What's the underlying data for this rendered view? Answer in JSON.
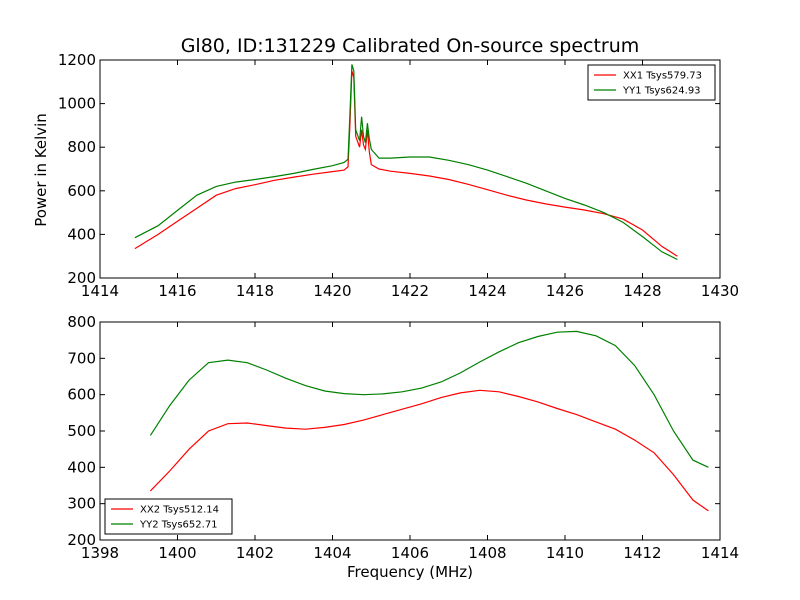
{
  "chart_data": [
    {
      "type": "line",
      "title": "Gl80, ID:131229 Calibrated On-source spectrum",
      "xlabel": "",
      "ylabel": "Power in Kelvin",
      "xlim": [
        1414,
        1430
      ],
      "ylim": [
        200,
        1200
      ],
      "xticks": [
        1414,
        1416,
        1418,
        1420,
        1422,
        1424,
        1426,
        1428,
        1430
      ],
      "yticks": [
        200,
        400,
        600,
        800,
        1000,
        1200
      ],
      "legend_position": "top-right",
      "series": [
        {
          "name": "XX1 Tsys579.73",
          "color": "#ff0000",
          "points": [
            [
              1414.9,
              335
            ],
            [
              1415.5,
              400
            ],
            [
              1416.0,
              460
            ],
            [
              1416.5,
              520
            ],
            [
              1417.0,
              580
            ],
            [
              1417.5,
              610
            ],
            [
              1418.0,
              628
            ],
            [
              1418.5,
              648
            ],
            [
              1419.0,
              663
            ],
            [
              1419.5,
              676
            ],
            [
              1420.0,
              688
            ],
            [
              1420.3,
              695
            ],
            [
              1420.4,
              710
            ],
            [
              1420.45,
              900
            ],
            [
              1420.5,
              1150
            ],
            [
              1420.55,
              1120
            ],
            [
              1420.6,
              850
            ],
            [
              1420.7,
              800
            ],
            [
              1420.75,
              880
            ],
            [
              1420.8,
              810
            ],
            [
              1420.85,
              790
            ],
            [
              1420.9,
              880
            ],
            [
              1420.95,
              780
            ],
            [
              1421.0,
              720
            ],
            [
              1421.2,
              700
            ],
            [
              1421.5,
              690
            ],
            [
              1422.0,
              680
            ],
            [
              1422.5,
              668
            ],
            [
              1423.0,
              652
            ],
            [
              1423.5,
              630
            ],
            [
              1424.0,
              605
            ],
            [
              1424.5,
              580
            ],
            [
              1425.0,
              558
            ],
            [
              1425.5,
              540
            ],
            [
              1426.0,
              525
            ],
            [
              1426.5,
              512
            ],
            [
              1427.0,
              495
            ],
            [
              1427.5,
              470
            ],
            [
              1428.0,
              420
            ],
            [
              1428.5,
              345
            ],
            [
              1428.9,
              300
            ]
          ]
        },
        {
          "name": "YY1 Tsys624.93",
          "color": "#008000",
          "points": [
            [
              1414.9,
              385
            ],
            [
              1415.5,
              440
            ],
            [
              1416.0,
              510
            ],
            [
              1416.5,
              580
            ],
            [
              1417.0,
              620
            ],
            [
              1417.5,
              640
            ],
            [
              1418.0,
              652
            ],
            [
              1418.5,
              665
            ],
            [
              1419.0,
              680
            ],
            [
              1419.5,
              698
            ],
            [
              1420.0,
              715
            ],
            [
              1420.3,
              730
            ],
            [
              1420.4,
              745
            ],
            [
              1420.45,
              950
            ],
            [
              1420.5,
              1180
            ],
            [
              1420.55,
              1150
            ],
            [
              1420.6,
              880
            ],
            [
              1420.7,
              830
            ],
            [
              1420.75,
              940
            ],
            [
              1420.8,
              850
            ],
            [
              1420.85,
              820
            ],
            [
              1420.9,
              910
            ],
            [
              1420.95,
              840
            ],
            [
              1421.0,
              790
            ],
            [
              1421.2,
              750
            ],
            [
              1421.5,
              750
            ],
            [
              1422.0,
              755
            ],
            [
              1422.5,
              755
            ],
            [
              1423.0,
              740
            ],
            [
              1423.5,
              720
            ],
            [
              1424.0,
              695
            ],
            [
              1424.5,
              665
            ],
            [
              1425.0,
              635
            ],
            [
              1425.5,
              600
            ],
            [
              1426.0,
              565
            ],
            [
              1426.5,
              535
            ],
            [
              1427.0,
              500
            ],
            [
              1427.5,
              455
            ],
            [
              1428.0,
              390
            ],
            [
              1428.5,
              320
            ],
            [
              1428.9,
              285
            ]
          ]
        }
      ]
    },
    {
      "type": "line",
      "title": "",
      "xlabel": "Frequency (MHz)",
      "ylabel": "",
      "xlim": [
        1398,
        1414
      ],
      "ylim": [
        200,
        800
      ],
      "xticks": [
        1398,
        1400,
        1402,
        1404,
        1406,
        1408,
        1410,
        1412,
        1414
      ],
      "yticks": [
        200,
        300,
        400,
        500,
        600,
        700,
        800
      ],
      "legend_position": "bottom-left",
      "series": [
        {
          "name": "XX2 Tsys512.14",
          "color": "#ff0000",
          "points": [
            [
              1399.3,
              335
            ],
            [
              1399.8,
              390
            ],
            [
              1400.3,
              450
            ],
            [
              1400.8,
              500
            ],
            [
              1401.3,
              520
            ],
            [
              1401.8,
              522
            ],
            [
              1402.3,
              515
            ],
            [
              1402.8,
              508
            ],
            [
              1403.3,
              505
            ],
            [
              1403.8,
              510
            ],
            [
              1404.3,
              518
            ],
            [
              1404.8,
              530
            ],
            [
              1405.3,
              545
            ],
            [
              1405.8,
              560
            ],
            [
              1406.3,
              575
            ],
            [
              1406.8,
              592
            ],
            [
              1407.3,
              605
            ],
            [
              1407.8,
              612
            ],
            [
              1408.3,
              608
            ],
            [
              1408.8,
              595
            ],
            [
              1409.3,
              580
            ],
            [
              1409.8,
              562
            ],
            [
              1410.3,
              545
            ],
            [
              1410.8,
              525
            ],
            [
              1411.3,
              505
            ],
            [
              1411.8,
              475
            ],
            [
              1412.3,
              440
            ],
            [
              1412.8,
              380
            ],
            [
              1413.3,
              310
            ],
            [
              1413.7,
              280
            ]
          ]
        },
        {
          "name": "YY2 Tsys652.71",
          "color": "#008000",
          "points": [
            [
              1399.3,
              488
            ],
            [
              1399.8,
              570
            ],
            [
              1400.3,
              640
            ],
            [
              1400.8,
              688
            ],
            [
              1401.3,
              695
            ],
            [
              1401.8,
              688
            ],
            [
              1402.3,
              668
            ],
            [
              1402.8,
              645
            ],
            [
              1403.3,
              625
            ],
            [
              1403.8,
              610
            ],
            [
              1404.3,
              603
            ],
            [
              1404.8,
              600
            ],
            [
              1405.3,
              602
            ],
            [
              1405.8,
              608
            ],
            [
              1406.3,
              618
            ],
            [
              1406.8,
              635
            ],
            [
              1407.3,
              660
            ],
            [
              1407.8,
              690
            ],
            [
              1408.3,
              718
            ],
            [
              1408.8,
              743
            ],
            [
              1409.3,
              760
            ],
            [
              1409.8,
              772
            ],
            [
              1410.3,
              774
            ],
            [
              1410.8,
              762
            ],
            [
              1411.3,
              735
            ],
            [
              1411.8,
              680
            ],
            [
              1412.3,
              600
            ],
            [
              1412.8,
              500
            ],
            [
              1413.3,
              420
            ],
            [
              1413.7,
              400
            ]
          ]
        }
      ]
    }
  ]
}
